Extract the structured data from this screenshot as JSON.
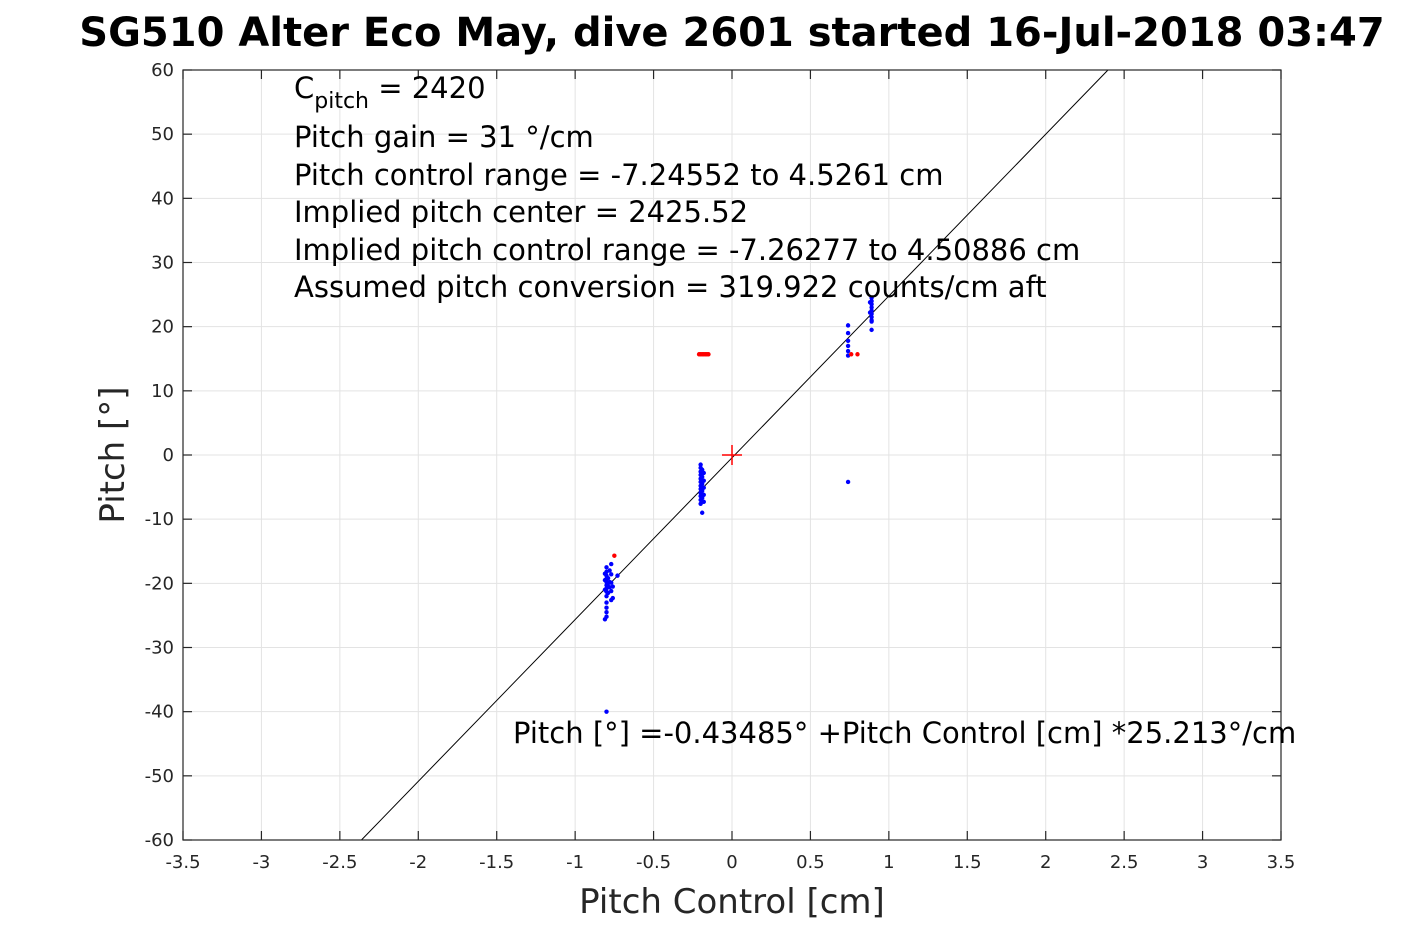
{
  "title": "SG510 Alter Eco May, dive 2601 started 16-Jul-2018 03:47",
  "chart_data": {
    "type": "scatter",
    "title": "SG510 Alter Eco May, dive 2601 started 16-Jul-2018 03:47",
    "xlabel": "Pitch Control [cm]",
    "ylabel": "Pitch [°]",
    "xlim": [
      -3.5,
      3.5
    ],
    "ylim": [
      -60,
      60
    ],
    "x_ticks": [
      -3.5,
      -3,
      -2.5,
      -2,
      -1.5,
      -1,
      -0.5,
      0,
      0.5,
      1,
      1.5,
      2,
      2.5,
      3,
      3.5
    ],
    "x_tick_labels": [
      "-3.5",
      "-3",
      "-2.5",
      "-2",
      "-1.5",
      "-1",
      "-0.5",
      "0",
      "0.5",
      "1",
      "1.5",
      "2",
      "2.5",
      "3",
      "3.5"
    ],
    "y_ticks": [
      -60,
      -50,
      -40,
      -30,
      -20,
      -10,
      0,
      10,
      20,
      30,
      40,
      50,
      60
    ],
    "y_tick_labels": [
      "-60",
      "-50",
      "-40",
      "-30",
      "-20",
      "-10",
      "0",
      "10",
      "20",
      "30",
      "40",
      "50",
      "60"
    ],
    "grid": true,
    "annotations": {
      "c_pitch_prefix": "C",
      "c_pitch_sub": "pitch",
      "c_pitch_suffix": " = 2420",
      "gain": "Pitch gain = 31 °/cm",
      "range": "Pitch control range = -7.24552 to 4.5261 cm",
      "center": "Implied pitch center = 2425.52",
      "implied_range": "Implied pitch control range = -7.26277 to 4.50886 cm",
      "conversion": "Assumed pitch conversion = 319.922 counts/cm aft",
      "fit": "Pitch [°] =-0.43485° +Pitch Control [cm] *25.213°/cm"
    },
    "fit_line": {
      "intercept": -0.43485,
      "slope": 25.213,
      "color": "#000000"
    },
    "center_marker": {
      "x": 0,
      "y": 0,
      "color": "#ff0000"
    },
    "series": [
      {
        "color": "#0000ff",
        "points": [
          [
            -0.8,
            -17.5
          ],
          [
            -0.8,
            -18.2
          ],
          [
            -0.8,
            -18.8
          ],
          [
            -0.8,
            -19.3
          ],
          [
            -0.8,
            -19.8
          ],
          [
            -0.8,
            -20.3
          ],
          [
            -0.8,
            -20.8
          ],
          [
            -0.8,
            -21.3
          ],
          [
            -0.8,
            -22.0
          ],
          [
            -0.8,
            -23.0
          ],
          [
            -0.8,
            -23.8
          ],
          [
            -0.8,
            -24.5
          ],
          [
            -0.8,
            -25.2
          ],
          [
            -0.81,
            -25.6
          ],
          [
            -0.81,
            -18.5
          ],
          [
            -0.81,
            -19.5
          ],
          [
            -0.81,
            -21.0
          ],
          [
            -0.79,
            -19.2
          ],
          [
            -0.79,
            -20.0
          ],
          [
            -0.79,
            -21.5
          ],
          [
            -0.78,
            -18.0
          ],
          [
            -0.78,
            -19.8
          ],
          [
            -0.78,
            -20.6
          ],
          [
            -0.77,
            -17.0
          ],
          [
            -0.77,
            -18.6
          ],
          [
            -0.77,
            -19.9
          ],
          [
            -0.77,
            -21.2
          ],
          [
            -0.77,
            -22.6
          ],
          [
            -0.76,
            -20.5
          ],
          [
            -0.76,
            -22.3
          ],
          [
            -0.73,
            -18.8
          ],
          [
            -0.8,
            -40.0
          ],
          [
            -0.2,
            -1.5
          ],
          [
            -0.2,
            -2.0
          ],
          [
            -0.2,
            -2.6
          ],
          [
            -0.2,
            -3.1
          ],
          [
            -0.2,
            -3.7
          ],
          [
            -0.2,
            -4.2
          ],
          [
            -0.2,
            -4.8
          ],
          [
            -0.2,
            -5.3
          ],
          [
            -0.2,
            -5.9
          ],
          [
            -0.2,
            -6.4
          ],
          [
            -0.2,
            -7.0
          ],
          [
            -0.2,
            -7.6
          ],
          [
            -0.19,
            -2.3
          ],
          [
            -0.19,
            -3.4
          ],
          [
            -0.19,
            -4.5
          ],
          [
            -0.19,
            -5.6
          ],
          [
            -0.19,
            -6.7
          ],
          [
            -0.18,
            -2.8
          ],
          [
            -0.18,
            -4.0
          ],
          [
            -0.18,
            -5.1
          ],
          [
            -0.18,
            -6.2
          ],
          [
            -0.18,
            -7.3
          ],
          [
            -0.19,
            -9.0
          ],
          [
            0.74,
            20.2
          ],
          [
            0.74,
            19.0
          ],
          [
            0.74,
            17.8
          ],
          [
            0.74,
            17.0
          ],
          [
            0.74,
            16.2
          ],
          [
            0.74,
            15.5
          ],
          [
            0.74,
            -4.2
          ],
          [
            0.89,
            24.5
          ],
          [
            0.89,
            24.0
          ],
          [
            0.89,
            23.5
          ],
          [
            0.89,
            23.0
          ],
          [
            0.89,
            22.5
          ],
          [
            0.89,
            22.0
          ],
          [
            0.89,
            21.5
          ],
          [
            0.89,
            21.0
          ],
          [
            0.89,
            20.8
          ],
          [
            0.89,
            19.5
          ],
          [
            0.88,
            23.8
          ],
          [
            0.88,
            22.2
          ]
        ]
      },
      {
        "color": "#ff0000",
        "points": [
          [
            -0.75,
            -15.7
          ],
          [
            -0.21,
            15.7
          ],
          [
            -0.2,
            15.7
          ],
          [
            -0.19,
            15.7
          ],
          [
            -0.18,
            15.7
          ],
          [
            -0.17,
            15.7
          ],
          [
            -0.16,
            15.7
          ],
          [
            -0.15,
            15.7
          ],
          [
            0.76,
            15.7
          ],
          [
            0.8,
            15.7
          ]
        ]
      }
    ]
  }
}
